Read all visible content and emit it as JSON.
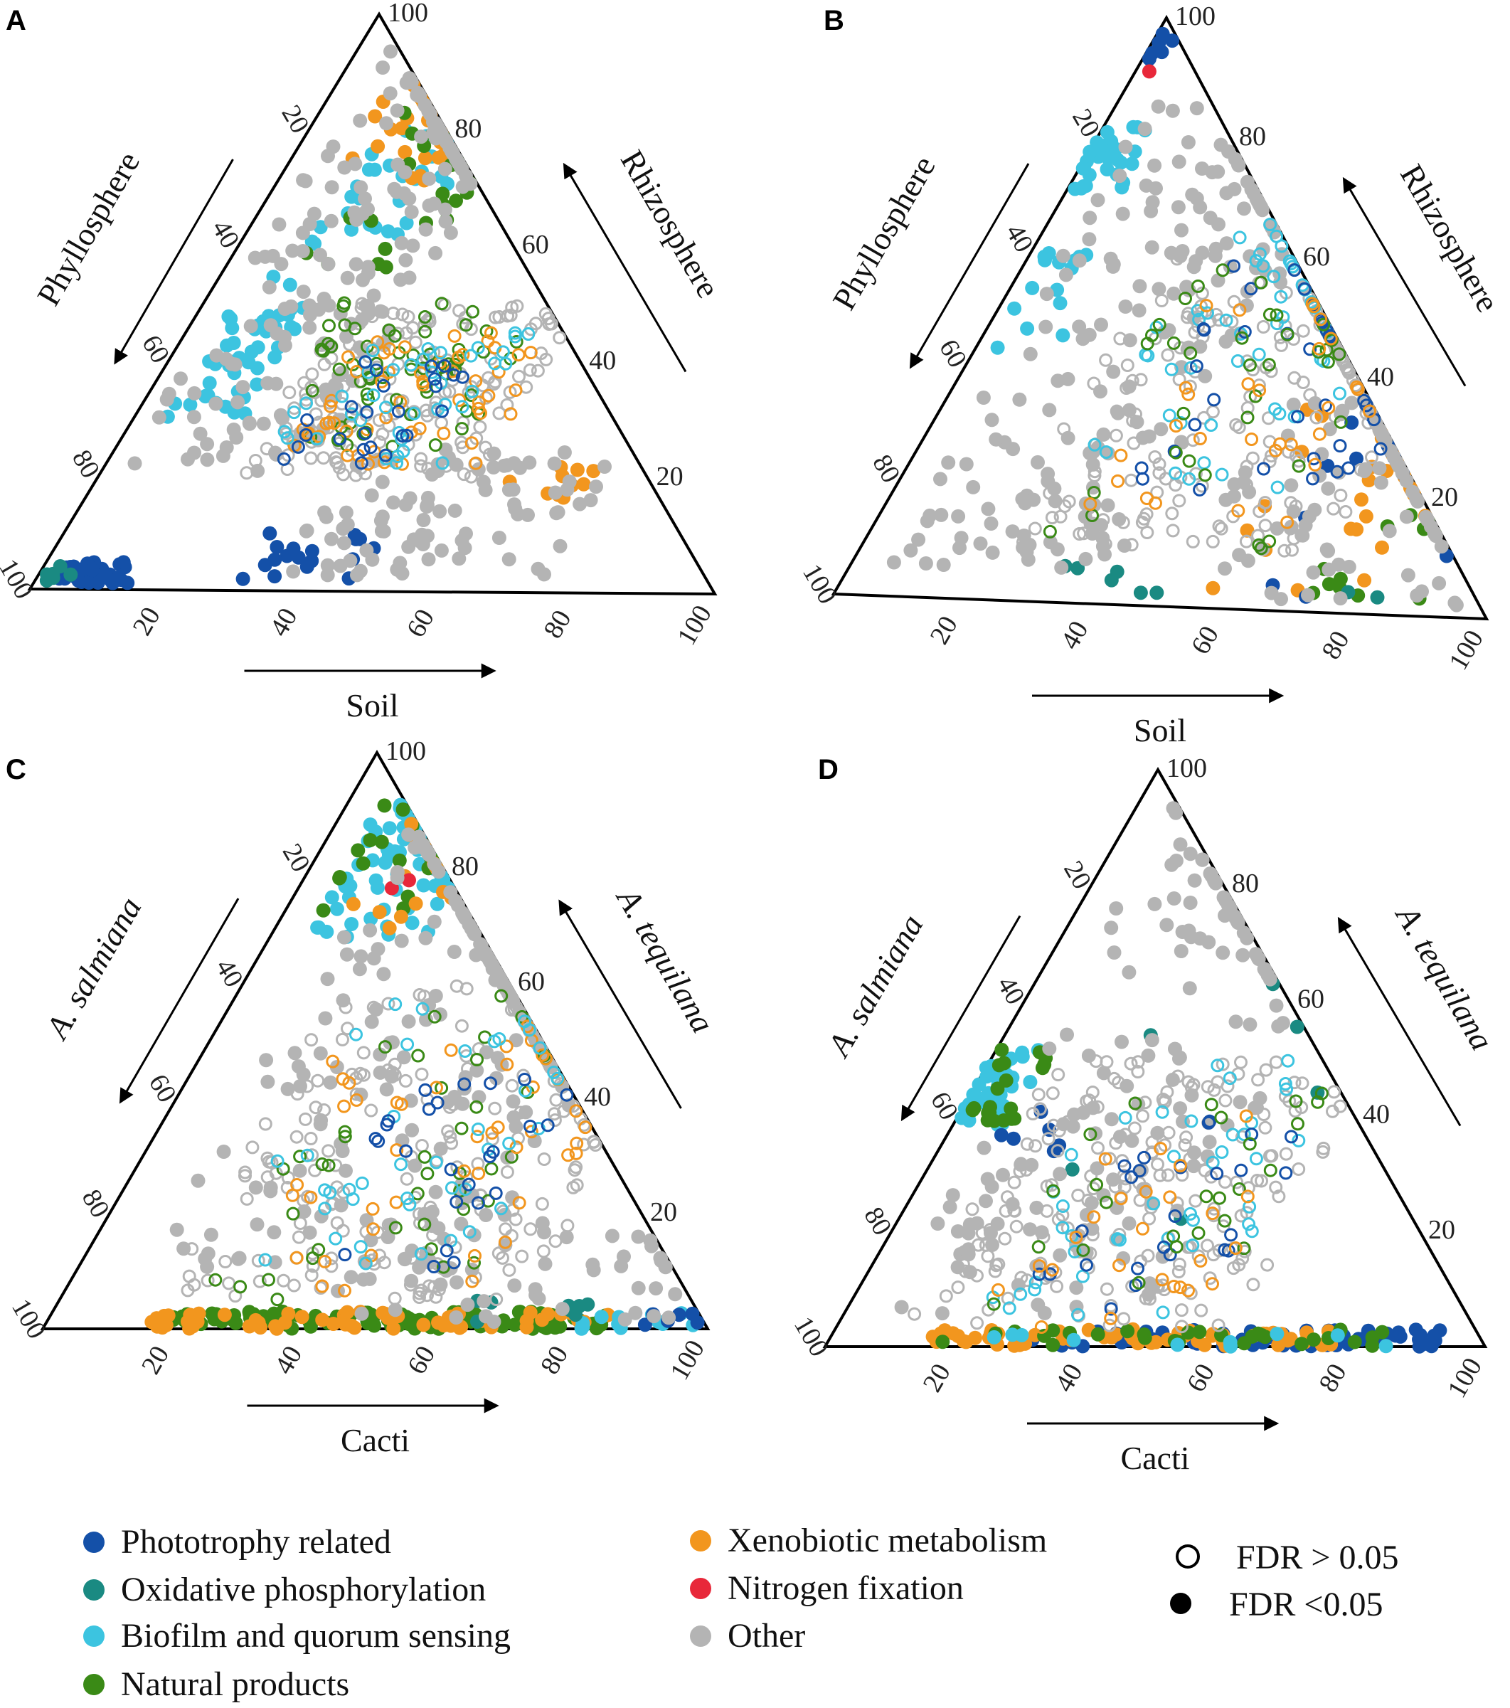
{
  "legend": {
    "categories": [
      {
        "key": "phototrophy",
        "label": "Phototrophy related",
        "color": "#1450a8"
      },
      {
        "key": "oxphos",
        "label": "Oxidative phosphorylation",
        "color": "#1a8a82"
      },
      {
        "key": "biofilm",
        "label": "Biofilm and quorum sensing",
        "color": "#3cc4e0"
      },
      {
        "key": "natural",
        "label": "Natural products",
        "color": "#3a8a16"
      },
      {
        "key": "xenobiotic",
        "label": "Xenobiotic metabolism",
        "color": "#f2961e"
      },
      {
        "key": "nitrogen",
        "label": "Nitrogen fixation",
        "color": "#e8283a"
      },
      {
        "key": "other",
        "label": "Other",
        "color": "#b4b4b4"
      }
    ],
    "fdr": [
      {
        "key": "ns",
        "label": "FDR > 0.05",
        "filled": false
      },
      {
        "key": "sig",
        "label": "FDR <0.05",
        "filled": true
      }
    ]
  },
  "chart_data": [
    {
      "panel": "A",
      "type": "scatter",
      "subtype": "ternary",
      "bottom_label": "Soil",
      "left_label": "Phyllosphere",
      "right_label": "Rhizosphere",
      "bottom_ticks": [
        "20",
        "40",
        "60",
        "80",
        "100"
      ],
      "left_ticks": [
        "100",
        "80",
        "60",
        "40",
        "20"
      ],
      "right_ticks": [
        "100",
        "80",
        "60",
        "40",
        "20"
      ],
      "seed": 11,
      "clusters": [
        {
          "category": "phototrophy",
          "filled": true,
          "n": 30,
          "soil": [
            3,
            14
          ],
          "rhizo": [
            1,
            5
          ]
        },
        {
          "category": "oxphos",
          "filled": true,
          "n": 6,
          "soil": [
            1,
            6
          ],
          "rhizo": [
            1,
            4
          ]
        },
        {
          "category": "biofilm",
          "filled": true,
          "n": 45,
          "soil": [
            4,
            16
          ],
          "rhizo": [
            30,
            55
          ]
        },
        {
          "category": "biofilm",
          "filled": true,
          "n": 30,
          "soil": [
            10,
            25
          ],
          "rhizo": [
            60,
            80
          ]
        },
        {
          "category": "xenobiotic",
          "filled": true,
          "n": 25,
          "soil": [
            8,
            22
          ],
          "rhizo": [
            70,
            92
          ]
        },
        {
          "category": "natural",
          "filled": true,
          "n": 25,
          "soil": [
            10,
            30
          ],
          "rhizo": [
            55,
            85
          ]
        },
        {
          "category": "phototrophy",
          "filled": true,
          "n": 18,
          "soil": [
            28,
            50
          ],
          "rhizo": [
            2,
            10
          ]
        },
        {
          "category": "xenobiotic",
          "filled": true,
          "n": 10,
          "soil": [
            60,
            72
          ],
          "rhizo": [
            15,
            22
          ]
        },
        {
          "category": "other",
          "filled": true,
          "n": 180,
          "soil": [
            3,
            30
          ],
          "rhizo": [
            20,
            95
          ]
        },
        {
          "category": "other",
          "filled": true,
          "n": 90,
          "soil": [
            35,
            75
          ],
          "rhizo": [
            2,
            25
          ]
        },
        {
          "category": "other",
          "filled": false,
          "n": 160,
          "soil": [
            20,
            55
          ],
          "rhizo": [
            20,
            50
          ]
        },
        {
          "category": "natural",
          "filled": false,
          "n": 60,
          "soil": [
            20,
            50
          ],
          "rhizo": [
            25,
            50
          ]
        },
        {
          "category": "xenobiotic",
          "filled": false,
          "n": 55,
          "soil": [
            25,
            55
          ],
          "rhizo": [
            22,
            45
          ]
        },
        {
          "category": "biofilm",
          "filled": false,
          "n": 40,
          "soil": [
            22,
            50
          ],
          "rhizo": [
            22,
            45
          ]
        },
        {
          "category": "phototrophy",
          "filled": false,
          "n": 25,
          "soil": [
            25,
            45
          ],
          "rhizo": [
            22,
            40
          ]
        }
      ]
    },
    {
      "panel": "B",
      "type": "scatter",
      "subtype": "ternary",
      "bottom_label": "Soil",
      "left_label": "Phyllosphere",
      "right_label": "Rhizosphere",
      "bottom_ticks": [
        "20",
        "40",
        "60",
        "80",
        "100"
      ],
      "left_ticks": [
        "100",
        "80",
        "60",
        "40",
        "20"
      ],
      "right_ticks": [
        "100",
        "80",
        "60",
        "40",
        "20"
      ],
      "seed": 23,
      "clusters": [
        {
          "category": "phototrophy",
          "filled": true,
          "n": 6,
          "soil": [
            0,
            4
          ],
          "rhizo": [
            90,
            98
          ]
        },
        {
          "category": "nitrogen",
          "filled": true,
          "n": 1,
          "soil": [
            2,
            3
          ],
          "rhizo": [
            90,
            91
          ]
        },
        {
          "category": "biofilm",
          "filled": true,
          "n": 30,
          "soil": [
            0,
            8
          ],
          "rhizo": [
            70,
            82
          ]
        },
        {
          "category": "biofilm",
          "filled": true,
          "n": 15,
          "soil": [
            2,
            12
          ],
          "rhizo": [
            40,
            60
          ]
        },
        {
          "category": "xenobiotic",
          "filled": true,
          "n": 30,
          "soil": [
            55,
            92
          ],
          "rhizo": [
            2,
            40
          ]
        },
        {
          "category": "phototrophy",
          "filled": true,
          "n": 14,
          "soil": [
            60,
            95
          ],
          "rhizo": [
            2,
            40
          ]
        },
        {
          "category": "natural",
          "filled": true,
          "n": 12,
          "soil": [
            70,
            95
          ],
          "rhizo": [
            2,
            20
          ]
        },
        {
          "category": "oxphos",
          "filled": true,
          "n": 8,
          "soil": [
            20,
            90
          ],
          "rhizo": [
            2,
            8
          ]
        },
        {
          "category": "other",
          "filled": true,
          "n": 180,
          "soil": [
            5,
            40
          ],
          "rhizo": [
            5,
            85
          ]
        },
        {
          "category": "other",
          "filled": true,
          "n": 80,
          "soil": [
            50,
            95
          ],
          "rhizo": [
            2,
            40
          ]
        },
        {
          "category": "other",
          "filled": false,
          "n": 180,
          "soil": [
            20,
            70
          ],
          "rhizo": [
            10,
            60
          ]
        },
        {
          "category": "biofilm",
          "filled": false,
          "n": 50,
          "soil": [
            25,
            60
          ],
          "rhizo": [
            20,
            70
          ]
        },
        {
          "category": "phototrophy",
          "filled": false,
          "n": 35,
          "soil": [
            30,
            70
          ],
          "rhizo": [
            20,
            70
          ]
        },
        {
          "category": "natural",
          "filled": false,
          "n": 35,
          "soil": [
            25,
            65
          ],
          "rhizo": [
            10,
            60
          ]
        },
        {
          "category": "xenobiotic",
          "filled": false,
          "n": 30,
          "soil": [
            30,
            70
          ],
          "rhizo": [
            15,
            60
          ]
        }
      ]
    },
    {
      "panel": "C",
      "type": "scatter",
      "subtype": "ternary",
      "bottom_label": "Cacti",
      "left_label": "A. salmiana",
      "right_label": "A. tequilana",
      "bottom_ticks": [
        "20",
        "40",
        "60",
        "80",
        "100"
      ],
      "left_ticks": [
        "100",
        "80",
        "60",
        "40",
        "20"
      ],
      "right_ticks": [
        "100",
        "80",
        "60",
        "40",
        "20"
      ],
      "seed": 37,
      "clusters": [
        {
          "category": "biofilm",
          "filled": true,
          "n": 70,
          "soil": [
            5,
            25
          ],
          "rhizo": [
            68,
            92
          ]
        },
        {
          "category": "natural",
          "filled": true,
          "n": 20,
          "soil": [
            5,
            20
          ],
          "rhizo": [
            72,
            92
          ]
        },
        {
          "category": "xenobiotic",
          "filled": true,
          "n": 15,
          "soil": [
            8,
            25
          ],
          "rhizo": [
            68,
            95
          ]
        },
        {
          "category": "nitrogen",
          "filled": true,
          "n": 2,
          "soil": [
            14,
            16
          ],
          "rhizo": [
            76,
            78
          ]
        },
        {
          "category": "natural",
          "filled": true,
          "n": 110,
          "soil": [
            15,
            85
          ],
          "rhizo": [
            0,
            3
          ]
        },
        {
          "category": "xenobiotic",
          "filled": true,
          "n": 60,
          "soil": [
            15,
            85
          ],
          "rhizo": [
            0,
            3
          ]
        },
        {
          "category": "biofilm",
          "filled": true,
          "n": 12,
          "soil": [
            80,
            98
          ],
          "rhizo": [
            0,
            3
          ]
        },
        {
          "category": "phototrophy",
          "filled": true,
          "n": 6,
          "soil": [
            90,
            99
          ],
          "rhizo": [
            0,
            4
          ]
        },
        {
          "category": "oxphos",
          "filled": true,
          "n": 8,
          "soil": [
            60,
            90
          ],
          "rhizo": [
            1,
            5
          ]
        },
        {
          "category": "other",
          "filled": true,
          "n": 200,
          "soil": [
            10,
            60
          ],
          "rhizo": [
            10,
            95
          ]
        },
        {
          "category": "other",
          "filled": true,
          "n": 60,
          "soil": [
            40,
            95
          ],
          "rhizo": [
            1,
            20
          ]
        },
        {
          "category": "other",
          "filled": false,
          "n": 180,
          "soil": [
            15,
            70
          ],
          "rhizo": [
            5,
            60
          ]
        },
        {
          "category": "natural",
          "filled": false,
          "n": 40,
          "soil": [
            20,
            60
          ],
          "rhizo": [
            5,
            60
          ]
        },
        {
          "category": "xenobiotic",
          "filled": false,
          "n": 45,
          "soil": [
            20,
            65
          ],
          "rhizo": [
            5,
            60
          ]
        },
        {
          "category": "biofilm",
          "filled": false,
          "n": 40,
          "soil": [
            20,
            60
          ],
          "rhizo": [
            10,
            60
          ]
        },
        {
          "category": "phototrophy",
          "filled": false,
          "n": 25,
          "soil": [
            30,
            65
          ],
          "rhizo": [
            10,
            50
          ]
        }
      ]
    },
    {
      "panel": "D",
      "type": "scatter",
      "subtype": "ternary",
      "bottom_label": "Cacti",
      "left_label": "A. salmiana",
      "right_label": "A. tequilana",
      "bottom_ticks": [
        "20",
        "40",
        "60",
        "80",
        "100"
      ],
      "left_ticks": [
        "100",
        "80",
        "60",
        "40",
        "20"
      ],
      "right_ticks": [
        "100",
        "80",
        "60",
        "40",
        "20"
      ],
      "seed": 53,
      "clusters": [
        {
          "category": "biofilm",
          "filled": true,
          "n": 45,
          "soil": [
            0,
            8
          ],
          "rhizo": [
            38,
            52
          ]
        },
        {
          "category": "natural",
          "filled": true,
          "n": 20,
          "soil": [
            0,
            10
          ],
          "rhizo": [
            38,
            52
          ]
        },
        {
          "category": "phototrophy",
          "filled": true,
          "n": 6,
          "soil": [
            8,
            20
          ],
          "rhizo": [
            30,
            42
          ]
        },
        {
          "category": "phototrophy",
          "filled": true,
          "n": 60,
          "soil": [
            30,
            92
          ],
          "rhizo": [
            0,
            3
          ]
        },
        {
          "category": "xenobiotic",
          "filled": true,
          "n": 60,
          "soil": [
            15,
            80
          ],
          "rhizo": [
            0,
            3
          ]
        },
        {
          "category": "natural",
          "filled": true,
          "n": 30,
          "soil": [
            15,
            85
          ],
          "rhizo": [
            0,
            3
          ]
        },
        {
          "category": "biofilm",
          "filled": true,
          "n": 10,
          "soil": [
            20,
            85
          ],
          "rhizo": [
            0,
            3
          ]
        },
        {
          "category": "oxphos",
          "filled": true,
          "n": 6,
          "soil": [
            20,
            60
          ],
          "rhizo": [
            20,
            75
          ]
        },
        {
          "category": "other",
          "filled": true,
          "n": 150,
          "soil": [
            5,
            45
          ],
          "rhizo": [
            5,
            98
          ]
        },
        {
          "category": "other",
          "filled": false,
          "n": 200,
          "soil": [
            10,
            60
          ],
          "rhizo": [
            3,
            50
          ]
        },
        {
          "category": "biofilm",
          "filled": false,
          "n": 40,
          "soil": [
            20,
            55
          ],
          "rhizo": [
            5,
            50
          ]
        },
        {
          "category": "phototrophy",
          "filled": false,
          "n": 25,
          "soil": [
            25,
            55
          ],
          "rhizo": [
            5,
            40
          ]
        },
        {
          "category": "natural",
          "filled": false,
          "n": 25,
          "soil": [
            20,
            55
          ],
          "rhizo": [
            5,
            45
          ]
        },
        {
          "category": "xenobiotic",
          "filled": false,
          "n": 25,
          "soil": [
            20,
            55
          ],
          "rhizo": [
            3,
            40
          ]
        }
      ]
    }
  ]
}
